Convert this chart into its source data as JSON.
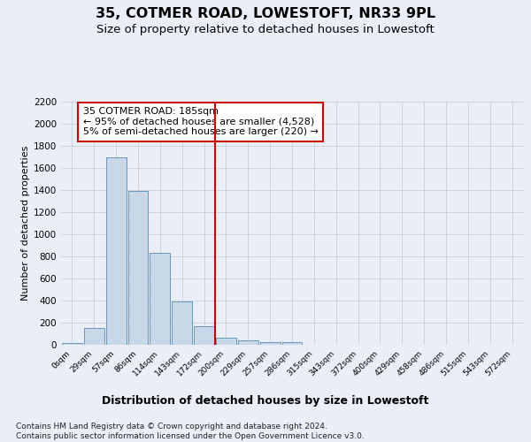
{
  "title": "35, COTMER ROAD, LOWESTOFT, NR33 9PL",
  "subtitle": "Size of property relative to detached houses in Lowestoft",
  "xlabel": "Distribution of detached houses by size in Lowestoft",
  "ylabel": "Number of detached properties",
  "bar_labels": [
    "0sqm",
    "29sqm",
    "57sqm",
    "86sqm",
    "114sqm",
    "143sqm",
    "172sqm",
    "200sqm",
    "229sqm",
    "257sqm",
    "286sqm",
    "315sqm",
    "343sqm",
    "372sqm",
    "400sqm",
    "429sqm",
    "458sqm",
    "486sqm",
    "515sqm",
    "543sqm",
    "572sqm"
  ],
  "bar_values": [
    20,
    155,
    1700,
    1390,
    835,
    390,
    165,
    65,
    40,
    28,
    27,
    0,
    0,
    0,
    0,
    0,
    0,
    0,
    0,
    0,
    0
  ],
  "bar_color": "#c8d8e8",
  "bar_edge_color": "#5a8ab0",
  "vline_x": 6.5,
  "vline_color": "#cc0000",
  "annotation_text": "35 COTMER ROAD: 185sqm\n← 95% of detached houses are smaller (4,528)\n5% of semi-detached houses are larger (220) →",
  "annotation_box_color": "#ffffff",
  "annotation_box_edge": "#cc0000",
  "ylim": [
    0,
    2200
  ],
  "yticks": [
    0,
    200,
    400,
    600,
    800,
    1000,
    1200,
    1400,
    1600,
    1800,
    2000,
    2200
  ],
  "bg_color": "#eaeff7",
  "plot_bg_color": "#eaeff7",
  "footer": "Contains HM Land Registry data © Crown copyright and database right 2024.\nContains public sector information licensed under the Open Government Licence v3.0.",
  "title_fontsize": 11.5,
  "subtitle_fontsize": 9.5,
  "xlabel_fontsize": 9,
  "ylabel_fontsize": 8,
  "footer_fontsize": 6.5,
  "annotation_fontsize": 8
}
